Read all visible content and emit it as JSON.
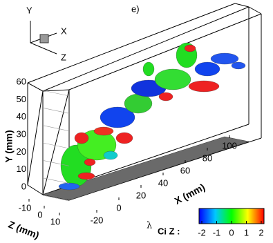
{
  "panel_label": "e)",
  "triad": {
    "y": "Y",
    "x": "X",
    "z": "Z"
  },
  "chart_data": {
    "type": "surface3d",
    "xlabel": "X (mm)",
    "ylabel": "Y (mm)",
    "zlabel": "Z (mm)",
    "xlim": [
      -20,
      100
    ],
    "xticks": [
      -20,
      0,
      20,
      40,
      60,
      80,
      100
    ],
    "ylim": [
      0,
      60
    ],
    "yticks": [
      0,
      10,
      20,
      30,
      40,
      50,
      60
    ],
    "zlim": [
      -10,
      10
    ],
    "zticks": [
      -10,
      0,
      10
    ],
    "colorbar": {
      "symbol": "λ",
      "subscript": "Ci Z :",
      "clim": [
        -2,
        2
      ],
      "ticks": [
        -2,
        -1,
        0,
        1,
        2
      ],
      "colors": [
        "#0000ff",
        "#00c8ff",
        "#00ff00",
        "#ffff00",
        "#ff0000"
      ]
    }
  }
}
